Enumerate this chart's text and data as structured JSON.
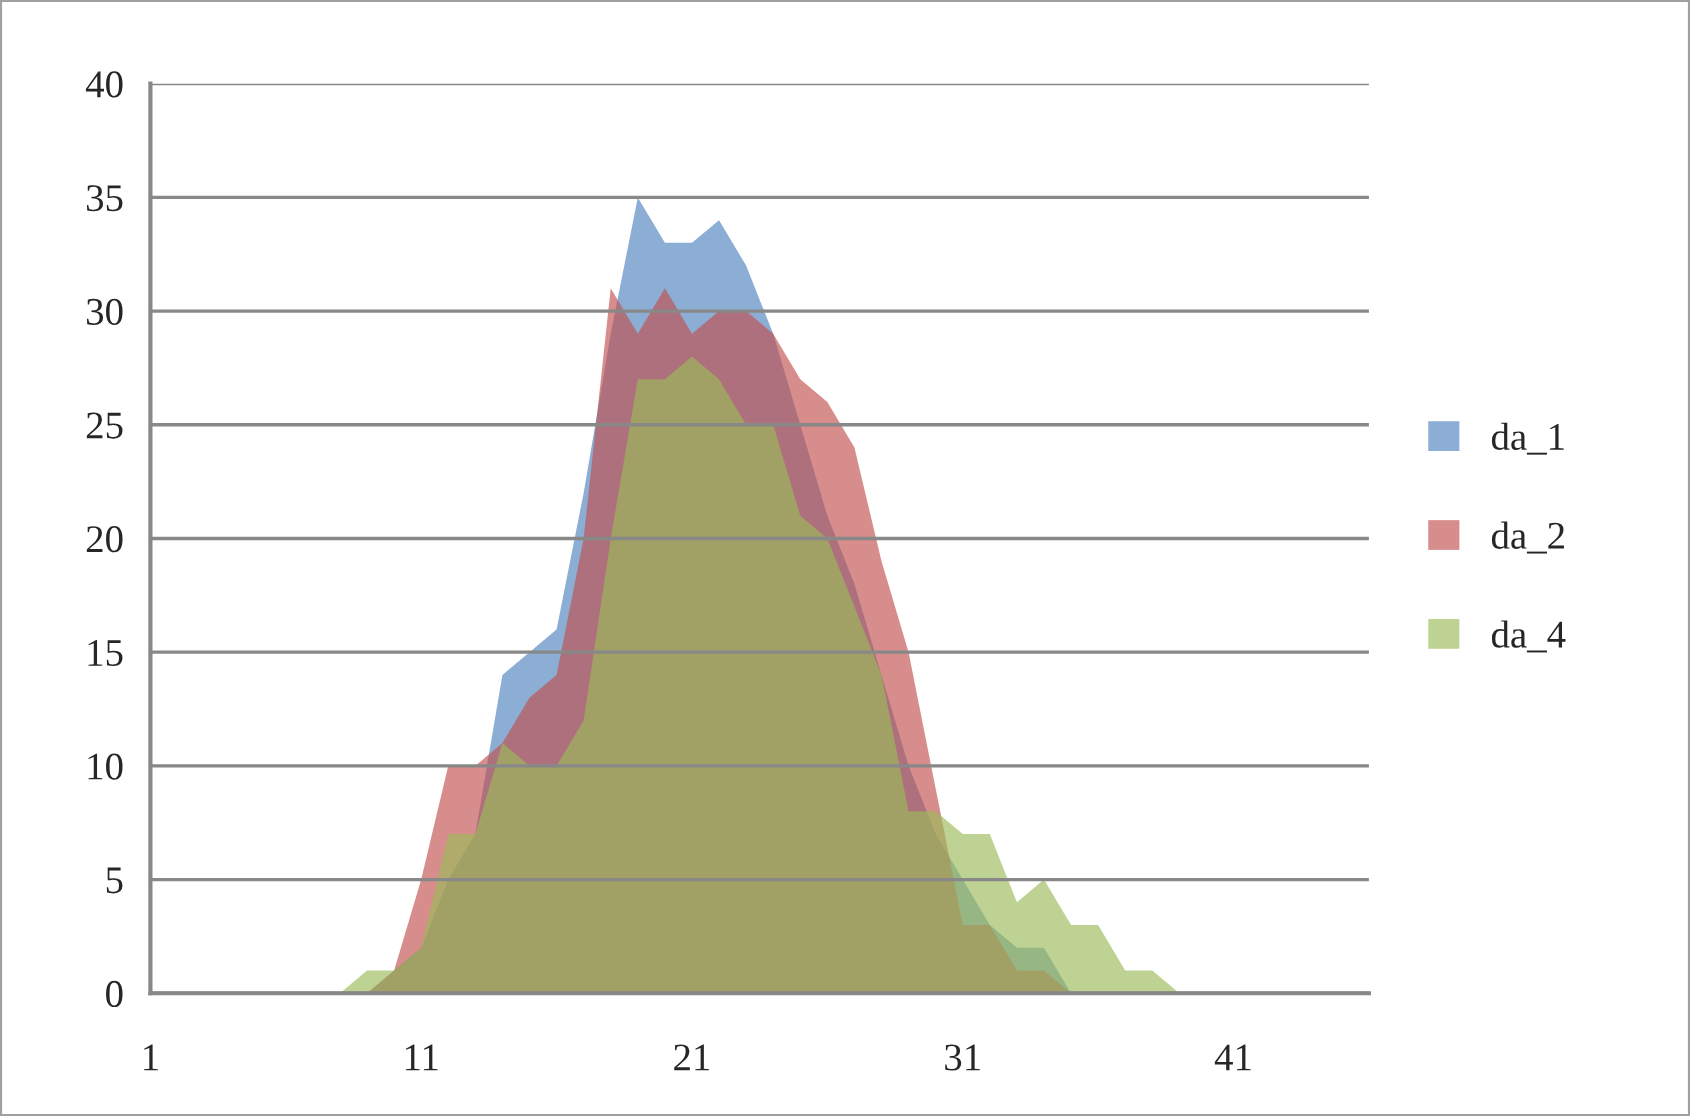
{
  "chart_data": {
    "type": "area",
    "x": [
      1,
      2,
      3,
      4,
      5,
      6,
      7,
      8,
      9,
      10,
      11,
      12,
      13,
      14,
      15,
      16,
      17,
      18,
      19,
      20,
      21,
      22,
      23,
      24,
      25,
      26,
      27,
      28,
      29,
      30,
      31,
      32,
      33,
      34,
      35,
      36,
      37,
      38,
      39,
      40,
      41,
      42,
      43,
      44,
      45,
      46
    ],
    "series": [
      {
        "name": "da_1",
        "color": "#4f81bd",
        "values": [
          0,
          0,
          0,
          0,
          0,
          0,
          0,
          0,
          0,
          1,
          2,
          5,
          7,
          14,
          15,
          16,
          22,
          29,
          35,
          33,
          33,
          34,
          32,
          29,
          25,
          21,
          18,
          14,
          10,
          7,
          5,
          3,
          2,
          2,
          0,
          0,
          0,
          0,
          0,
          0,
          0,
          0,
          0,
          0,
          0,
          0
        ]
      },
      {
        "name": "da_2",
        "color": "#c0504d",
        "values": [
          0,
          0,
          0,
          0,
          0,
          0,
          0,
          0,
          0,
          1,
          5,
          10,
          10,
          11,
          13,
          14,
          20,
          31,
          29,
          31,
          29,
          30,
          30,
          29,
          27,
          26,
          24,
          19,
          15,
          9,
          3,
          3,
          1,
          1,
          0,
          0,
          0,
          0,
          0,
          0,
          0,
          0,
          0,
          0,
          0,
          0
        ]
      },
      {
        "name": "da_4",
        "color": "#9bbb59",
        "values": [
          0,
          0,
          0,
          0,
          0,
          0,
          0,
          0,
          1,
          1,
          2,
          7,
          7,
          11,
          10,
          10,
          12,
          20,
          27,
          27,
          28,
          27,
          25,
          25,
          21,
          20,
          17,
          14,
          8,
          8,
          7,
          7,
          4,
          5,
          3,
          3,
          1,
          1,
          0,
          0,
          0,
          0,
          0,
          0,
          0,
          0
        ]
      }
    ],
    "xlim": [
      1,
      46
    ],
    "xticks": [
      1,
      11,
      21,
      31,
      41
    ],
    "ylim": [
      0,
      40
    ],
    "yticks": [
      0,
      5,
      10,
      15,
      20,
      25,
      30,
      35,
      40
    ],
    "grid": "y",
    "legend": "right"
  }
}
